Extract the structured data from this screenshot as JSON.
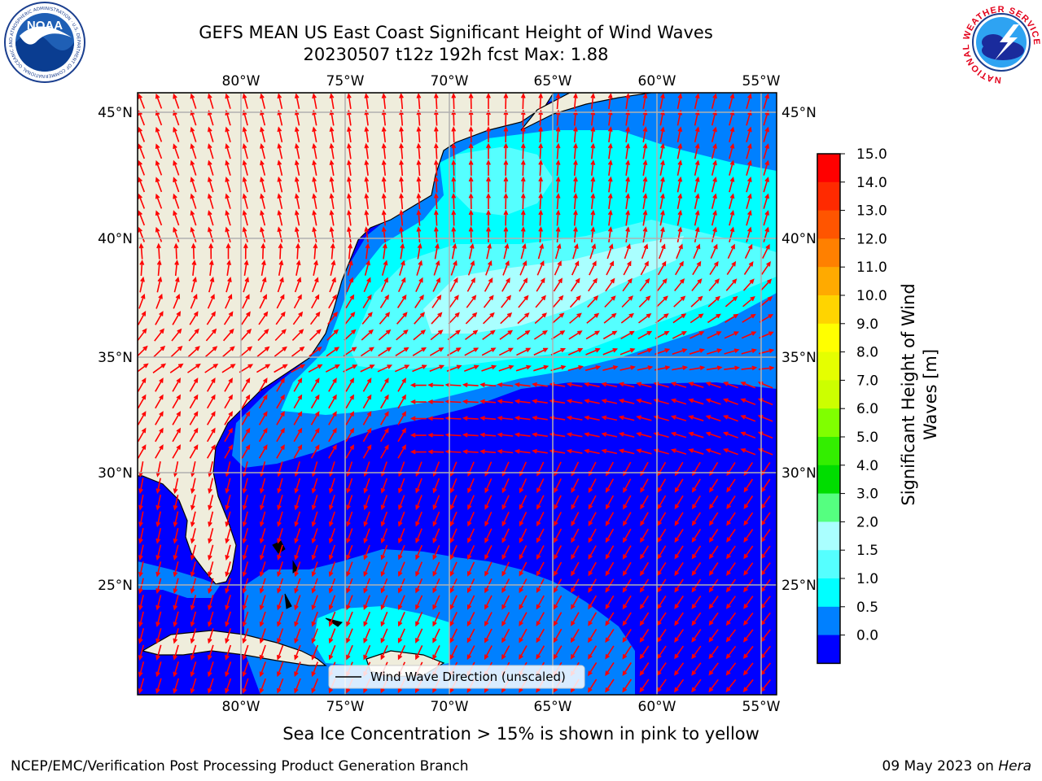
{
  "header": {
    "title_line1": "GEFS MEAN US East Coast Significant Height of Wind Waves",
    "title_line2": "20230507 t12z 192h fcst   Max: 1.88"
  },
  "logos": {
    "left_text": "NOAA",
    "left_ring_text": "NATIONAL OCEANIC AND ATMOSPHERIC ADMINISTRATION · U.S. DEPARTMENT OF COMMERCE",
    "right_ring_text": "NATIONAL WEATHER SERVICE"
  },
  "map": {
    "lon_labels": [
      "80°W",
      "75°W",
      "70°W",
      "65°W",
      "60°W",
      "55°W"
    ],
    "lat_labels": [
      "45°N",
      "40°N",
      "35°N",
      "30°N",
      "25°N"
    ],
    "legend_label": "Wind Wave Direction (unscaled)",
    "ocean_colors": {
      "c0": "#0000ff",
      "c05": "#0080ff",
      "c1": "#00ffff",
      "c15": "#55ffff",
      "c2": "#aaffff"
    },
    "land_color": "#efeddc",
    "arrow_color": "#ff0000",
    "grid_color": "#b0b0b0"
  },
  "colorbar": {
    "label": "Significant Height of Wind Waves [m]",
    "ticks": [
      "15.0",
      "14.0",
      "13.0",
      "12.0",
      "11.0",
      "10.0",
      "9.0",
      "8.0",
      "7.0",
      "6.0",
      "5.0",
      "4.0",
      "3.0",
      "2.0",
      "1.5",
      "1.0",
      "0.5",
      "0.0"
    ],
    "colors": [
      "#ff0000",
      "#ff2a00",
      "#ff5500",
      "#ff8000",
      "#ffaa00",
      "#ffd400",
      "#ffff00",
      "#e5ff00",
      "#ccff00",
      "#80ff00",
      "#33ee00",
      "#00dd00",
      "#55ff80",
      "#aaffff",
      "#55ffff",
      "#00ffff",
      "#0080ff",
      "#0000ff"
    ]
  },
  "footer": {
    "sea_ice_note": "Sea Ice Concentration > 15% is shown in pink to yellow",
    "branch": "NCEP/EMC/Verification Post Processing Product Generation Branch",
    "date": "09 May 2023 on ",
    "host": "Hera"
  }
}
